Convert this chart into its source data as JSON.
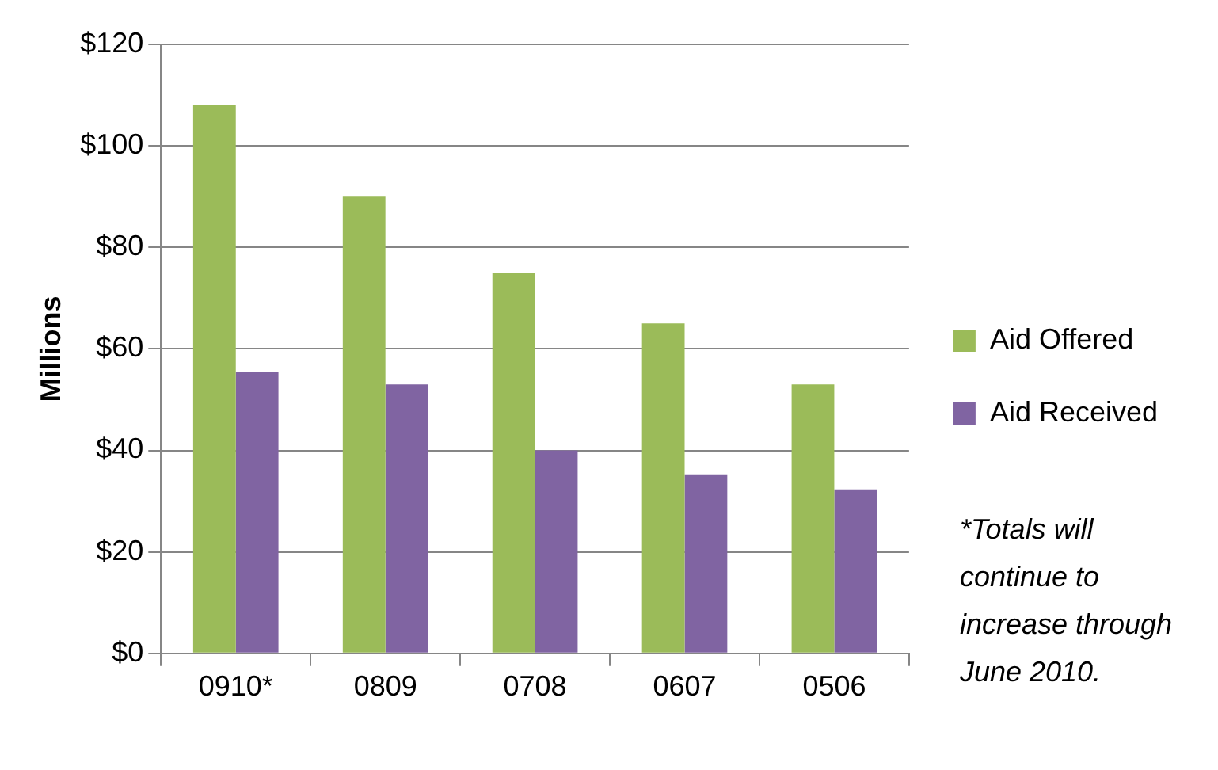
{
  "chart_data": {
    "type": "bar",
    "ylabel": "Millions",
    "categories": [
      "0910*",
      "0809",
      "0708",
      "0607",
      "0506"
    ],
    "series": [
      {
        "name": "Aid Offered",
        "color": "#9bbb59",
        "values": [
          108,
          90,
          75,
          65,
          53
        ]
      },
      {
        "name": "Aid Received",
        "color": "#8064a2",
        "values": [
          55.5,
          53,
          40,
          35.3,
          32.3
        ]
      }
    ],
    "ylim": [
      0,
      120
    ],
    "yticks": [
      {
        "value": 0,
        "label": "$0"
      },
      {
        "value": 20,
        "label": "$20"
      },
      {
        "value": 40,
        "label": "$40"
      },
      {
        "value": 60,
        "label": "$60"
      },
      {
        "value": 80,
        "label": "$80"
      },
      {
        "value": 100,
        "label": "$100"
      },
      {
        "value": 120,
        "label": "$120"
      }
    ],
    "grid": "y",
    "legend": "right",
    "annotations": [
      "*Totals will continue to increase through June 2010."
    ]
  }
}
